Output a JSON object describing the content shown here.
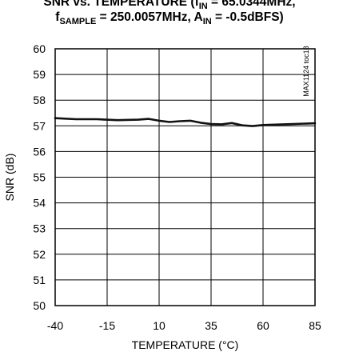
{
  "chart_data": {
    "type": "line",
    "title": {
      "line1": [
        {
          "text": "SNR vs. TEMPERATURE (f"
        },
        {
          "text": "IN",
          "sub": true
        },
        {
          "text": " = 65.0344MHz,"
        }
      ],
      "line2": [
        {
          "text": "f"
        },
        {
          "text": "SAMPLE",
          "sub": true
        },
        {
          "text": " = 250.0057MHz, A"
        },
        {
          "text": "IN",
          "sub": true
        },
        {
          "text": " = -0.5dBFS)"
        }
      ]
    },
    "xlabel": "TEMPERATURE (°C)",
    "ylabel": "SNR (dB)",
    "xlim": [
      -40,
      85
    ],
    "ylim": [
      50,
      60
    ],
    "xticks": [
      -40,
      -15,
      10,
      35,
      60,
      85
    ],
    "yticks": [
      50,
      51,
      52,
      53,
      54,
      55,
      56,
      57,
      58,
      59,
      60
    ],
    "grid": true,
    "annotation": "MAX1124 toc18",
    "series": [
      {
        "x": [
          -40,
          -30,
          -20,
          -10,
          0,
          5,
          10,
          15,
          20,
          25,
          30,
          35,
          40,
          45,
          50,
          55,
          60,
          70,
          85
        ],
        "y": [
          57.3,
          57.26,
          57.26,
          57.22,
          57.24,
          57.27,
          57.2,
          57.15,
          57.18,
          57.2,
          57.12,
          57.07,
          57.06,
          57.11,
          57.02,
          56.99,
          57.03,
          57.06,
          57.1
        ]
      }
    ],
    "line_color": "#111111"
  }
}
